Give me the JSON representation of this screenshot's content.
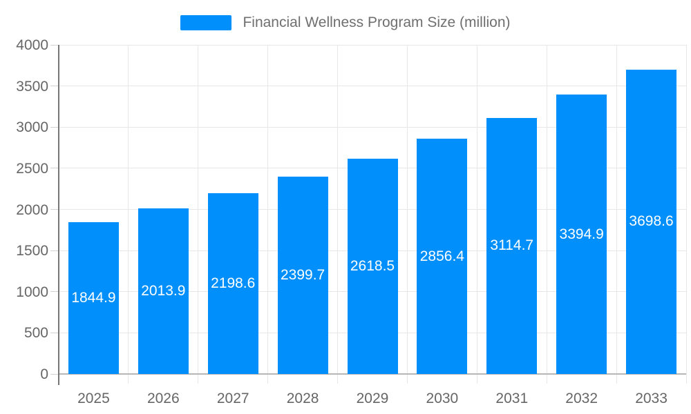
{
  "legend": {
    "label": "Financial Wellness Program Size (million)"
  },
  "chart_data": {
    "type": "bar",
    "title": "Financial Wellness Program Size (million)",
    "categories": [
      "2025",
      "2026",
      "2027",
      "2028",
      "2029",
      "2030",
      "2031",
      "2032",
      "2033"
    ],
    "series": [
      {
        "name": "Financial Wellness Program Size (million)",
        "values": [
          1844.9,
          2013.9,
          2198.6,
          2399.7,
          2618.5,
          2856.4,
          3114.7,
          3394.9,
          3698.6
        ]
      }
    ],
    "data_labels": [
      "1844.9",
      "2013.9",
      "2198.6",
      "2399.7",
      "2618.5",
      "2856.4",
      "3114.7",
      "3394.9",
      "3698.6"
    ],
    "xlabel": "",
    "ylabel": "",
    "ylim": [
      0,
      4000
    ],
    "ytick_step": 500,
    "grid": true,
    "legend_position": "top",
    "colors": {
      "bar": "#008FFB",
      "data_label_text": "#ffffff",
      "axis_label_text": "#666666",
      "legend_text": "#6f6f6f",
      "gridline": "#e7e7e7",
      "zero_line": "#b6b6b6",
      "y_axis_line": "#767676",
      "y_tick": "#d2d2d2",
      "background": "#ffffff"
    }
  }
}
